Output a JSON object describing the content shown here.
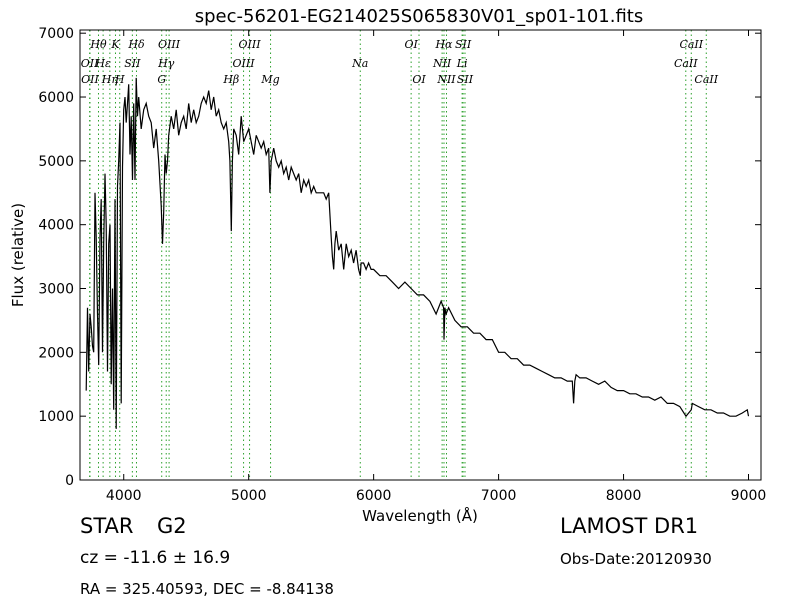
{
  "chart_data": {
    "type": "line",
    "title": "spec-56201-EG214025S065830V01_sp01-101.fits",
    "xlabel": "Wavelength (Å)",
    "ylabel": "Flux (relative)",
    "xlim": [
      3650,
      9100
    ],
    "ylim": [
      0,
      7050
    ],
    "x_ticks": [
      4000,
      5000,
      6000,
      7000,
      8000,
      9000
    ],
    "y_ticks": [
      0,
      1000,
      2000,
      3000,
      4000,
      5000,
      6000,
      7000
    ],
    "grid": false,
    "series": [
      {
        "color": "#000000",
        "x": [
          3700,
          3710,
          3720,
          3730,
          3740,
          3750,
          3760,
          3770,
          3780,
          3790,
          3800,
          3810,
          3820,
          3830,
          3840,
          3850,
          3860,
          3870,
          3880,
          3890,
          3900,
          3910,
          3920,
          3930,
          3940,
          3950,
          3960,
          3970,
          3980,
          3990,
          4000,
          4010,
          4020,
          4030,
          4040,
          4050,
          4060,
          4070,
          4080,
          4090,
          4100,
          4110,
          4120,
          4140,
          4160,
          4180,
          4200,
          4220,
          4240,
          4260,
          4280,
          4300,
          4310,
          4320,
          4330,
          4340,
          4350,
          4360,
          4380,
          4400,
          4420,
          4440,
          4460,
          4480,
          4500,
          4520,
          4540,
          4560,
          4580,
          4600,
          4620,
          4640,
          4660,
          4680,
          4700,
          4720,
          4740,
          4760,
          4780,
          4800,
          4820,
          4840,
          4850,
          4861,
          4870,
          4880,
          4900,
          4920,
          4940,
          4960,
          4980,
          5000,
          5020,
          5040,
          5060,
          5080,
          5100,
          5120,
          5140,
          5160,
          5170,
          5180,
          5200,
          5220,
          5240,
          5260,
          5280,
          5300,
          5320,
          5340,
          5360,
          5380,
          5400,
          5420,
          5440,
          5460,
          5480,
          5500,
          5520,
          5540,
          5560,
          5580,
          5600,
          5620,
          5640,
          5660,
          5670,
          5680,
          5690,
          5700,
          5720,
          5740,
          5760,
          5780,
          5800,
          5820,
          5840,
          5860,
          5880,
          5893,
          5900,
          5920,
          5940,
          5960,
          5980,
          6000,
          6050,
          6100,
          6150,
          6200,
          6250,
          6300,
          6350,
          6400,
          6450,
          6500,
          6540,
          6560,
          6563,
          6570,
          6580,
          6600,
          6650,
          6700,
          6750,
          6800,
          6850,
          6900,
          6950,
          7000,
          7050,
          7100,
          7150,
          7200,
          7250,
          7300,
          7350,
          7400,
          7450,
          7500,
          7550,
          7590,
          7600,
          7610,
          7620,
          7650,
          7700,
          7750,
          7800,
          7850,
          7900,
          7950,
          8000,
          8050,
          8100,
          8150,
          8200,
          8250,
          8300,
          8350,
          8400,
          8450,
          8500,
          8542,
          8550,
          8600,
          8650,
          8700,
          8750,
          8800,
          8850,
          8900,
          8950,
          8990,
          9000
        ],
        "values": [
          1400,
          2700,
          1700,
          2600,
          2400,
          2100,
          2000,
          4500,
          3800,
          2600,
          1800,
          3800,
          4400,
          2000,
          3700,
          4800,
          4000,
          1700,
          3700,
          4000,
          1500,
          3000,
          1100,
          4400,
          800,
          4600,
          5000,
          5600,
          1200,
          4900,
          5800,
          6000,
          5600,
          5900,
          6200,
          5100,
          5700,
          4700,
          5900,
          4700,
          6300,
          5700,
          6000,
          5500,
          5800,
          5900,
          5700,
          5600,
          5200,
          5500,
          5000,
          4300,
          3700,
          4200,
          5100,
          4800,
          5000,
          5400,
          5700,
          5500,
          5800,
          5400,
          5600,
          5700,
          5500,
          5900,
          5600,
          5800,
          5600,
          5700,
          5900,
          6000,
          5900,
          6100,
          5800,
          6000,
          5700,
          5800,
          5600,
          5500,
          5600,
          5300,
          5000,
          3900,
          5000,
          5500,
          5400,
          5100,
          5700,
          5300,
          5400,
          5500,
          5300,
          5100,
          5400,
          5300,
          5200,
          5300,
          5100,
          5200,
          4500,
          5000,
          5200,
          5000,
          4900,
          5000,
          4800,
          4900,
          4700,
          4900,
          4800,
          4700,
          4800,
          4500,
          4700,
          4600,
          4700,
          4500,
          4600,
          4500,
          4500,
          4500,
          4500,
          4400,
          4500,
          3800,
          3500,
          3300,
          3700,
          3900,
          3600,
          3700,
          3300,
          3700,
          3500,
          3600,
          3400,
          3600,
          3300,
          3200,
          3400,
          3400,
          3300,
          3400,
          3300,
          3300,
          3200,
          3200,
          3100,
          3000,
          3100,
          3000,
          2900,
          2900,
          2800,
          2600,
          2800,
          2700,
          2200,
          2700,
          2600,
          2700,
          2500,
          2400,
          2400,
          2300,
          2300,
          2200,
          2200,
          2000,
          2000,
          1900,
          1900,
          1800,
          1800,
          1750,
          1700,
          1650,
          1600,
          1600,
          1550,
          1550,
          1200,
          1550,
          1650,
          1600,
          1600,
          1550,
          1500,
          1550,
          1450,
          1400,
          1400,
          1350,
          1350,
          1300,
          1300,
          1250,
          1300,
          1200,
          1200,
          1150,
          1000,
          1100,
          1200,
          1150,
          1100,
          1100,
          1050,
          1050,
          1000,
          1000,
          1050,
          1100,
          1000
        ]
      }
    ],
    "lines": [
      {
        "name": "Hθ",
        "x": 3798,
        "label_row": "upper"
      },
      {
        "name": "OII",
        "x": 3727,
        "label_row": "mid"
      },
      {
        "name": "OII",
        "x": 3730,
        "label_row": "lower"
      },
      {
        "name": "K",
        "x": 3934,
        "label_row": "upper"
      },
      {
        "name": "Hε",
        "x": 3835,
        "label_row": "mid"
      },
      {
        "name": "SII",
        "x": 4069,
        "label_row": "mid"
      },
      {
        "name": "Hη",
        "x": 3889,
        "label_row": "lower"
      },
      {
        "name": "Hδ",
        "x": 4102,
        "label_row": "upper"
      },
      {
        "name": "H",
        "x": 3968,
        "label_row": "lower"
      },
      {
        "name": "OIII",
        "x": 4363,
        "label_row": "upper"
      },
      {
        "name": "Hγ",
        "x": 4340,
        "label_row": "mid"
      },
      {
        "name": "G",
        "x": 4304,
        "label_row": "lower"
      },
      {
        "name": "OIII",
        "x": 5007,
        "label_row": "upper"
      },
      {
        "name": "Hβ",
        "x": 4861,
        "label_row": "lower"
      },
      {
        "name": "OIII",
        "x": 4959,
        "label_row": "mid"
      },
      {
        "name": "Mg",
        "x": 5175,
        "label_row": "lower"
      },
      {
        "name": "Na",
        "x": 5893,
        "label_row": "mid"
      },
      {
        "name": "OI",
        "x": 6300,
        "label_row": "upper"
      },
      {
        "name": "OI",
        "x": 6363,
        "label_row": "lower"
      },
      {
        "name": "Hα",
        "x": 6563,
        "label_row": "upper"
      },
      {
        "name": "NII",
        "x": 6548,
        "label_row": "mid"
      },
      {
        "name": "NII",
        "x": 6583,
        "label_row": "lower"
      },
      {
        "name": "SII",
        "x": 6716,
        "label_row": "upper"
      },
      {
        "name": "Li",
        "x": 6708,
        "label_row": "mid"
      },
      {
        "name": "SII",
        "x": 6731,
        "label_row": "lower"
      },
      {
        "name": "CaII",
        "x": 8542,
        "label_row": "upper"
      },
      {
        "name": "CaII",
        "x": 8498,
        "label_row": "mid"
      },
      {
        "name": "CaII",
        "x": 8662,
        "label_row": "lower"
      }
    ],
    "line_color": "#2ca02c"
  },
  "info": {
    "object_class": "STAR",
    "subclass": "G2",
    "survey": "LAMOST DR1",
    "redshift": "cz = -11.6 ± 16.9",
    "obs_date": "Obs-Date:20120930",
    "coords": "RA = 325.40593, DEC = -8.84138"
  }
}
